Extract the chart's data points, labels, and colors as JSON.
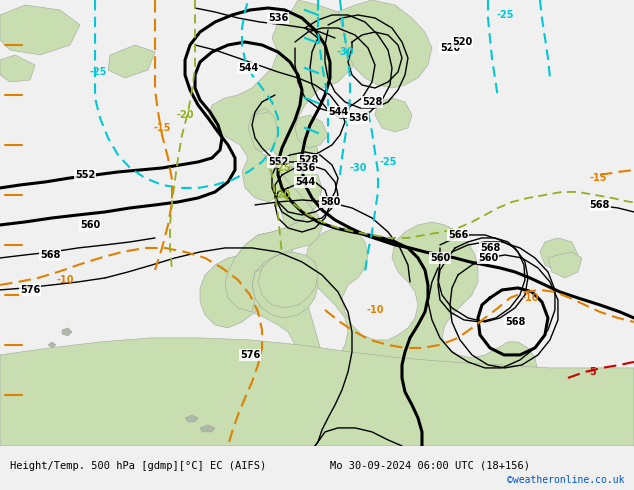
{
  "title_left": "Height/Temp. 500 hPa [gdmp][°C] EC (AIFS)",
  "title_right": "Mo 30-09-2024 06:00 UTC (18+156)",
  "credit": "©weatheronline.co.uk",
  "ocean_color": "#d8d8d8",
  "land_color": "#c8ddb0",
  "footer_bg": "#f0f0f0",
  "black_contour_lw_thin": 1.0,
  "black_contour_lw_thick": 2.2,
  "cyan_color": "#00c8d4",
  "orange_color": "#e08000",
  "green_color": "#90b020",
  "red_color": "#cc0000",
  "label_fontsize": 7
}
